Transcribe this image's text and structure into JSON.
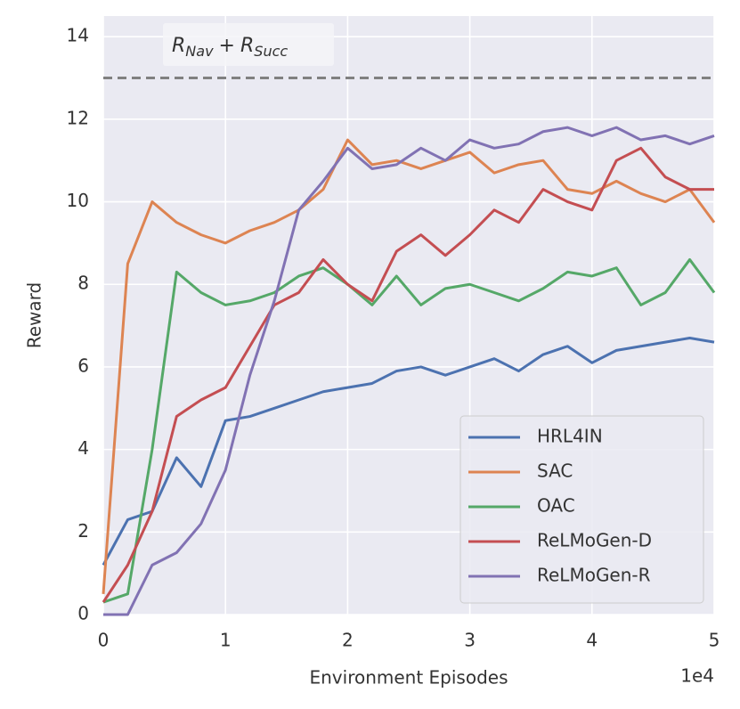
{
  "chart_data": {
    "type": "line",
    "xlabel": "Environment Episodes",
    "ylabel": "Reward",
    "x_offset_label": "1e4",
    "xlim": [
      0,
      5
    ],
    "ylim": [
      0,
      14.5
    ],
    "xticks": [
      0,
      1,
      2,
      3,
      4,
      5
    ],
    "yticks": [
      0,
      2,
      4,
      6,
      8,
      10,
      12,
      14
    ],
    "grid": true,
    "legend": "lower right",
    "reference_line": {
      "value": 13,
      "color": "#808080",
      "label_parts": [
        "R",
        "Nav",
        "+",
        "R",
        "Succ"
      ]
    },
    "x": [
      0,
      0.2,
      0.4,
      0.6,
      0.8,
      1.0,
      1.2,
      1.4,
      1.6,
      1.8,
      2.0,
      2.2,
      2.4,
      2.6,
      2.8,
      3.0,
      3.2,
      3.4,
      3.6,
      3.8,
      4.0,
      4.2,
      4.4,
      4.6,
      4.8,
      5.0
    ],
    "series": [
      {
        "name": "HRL4IN",
        "color": "#4c72b0",
        "values": [
          1.2,
          2.3,
          2.5,
          3.8,
          3.1,
          4.7,
          4.8,
          5.0,
          5.2,
          5.4,
          5.5,
          5.6,
          5.9,
          6.0,
          5.8,
          6.0,
          6.2,
          5.9,
          6.3,
          6.5,
          6.1,
          6.4,
          6.5,
          6.6,
          6.7,
          6.6
        ]
      },
      {
        "name": "SAC",
        "color": "#dd8452",
        "values": [
          0.5,
          8.5,
          10.0,
          9.5,
          9.2,
          9.0,
          9.3,
          9.5,
          9.8,
          10.3,
          11.5,
          10.9,
          11.0,
          10.8,
          11.0,
          11.2,
          10.7,
          10.9,
          11.0,
          10.3,
          10.2,
          10.5,
          10.2,
          10.0,
          10.3,
          9.5
        ]
      },
      {
        "name": "OAC",
        "color": "#55a868",
        "values": [
          0.3,
          0.5,
          4.0,
          8.3,
          7.8,
          7.5,
          7.6,
          7.8,
          8.2,
          8.4,
          8.0,
          7.5,
          8.2,
          7.5,
          7.9,
          8.0,
          7.8,
          7.6,
          7.9,
          8.3,
          8.2,
          8.4,
          7.5,
          7.8,
          8.6,
          7.8
        ]
      },
      {
        "name": "ReLMoGen-D",
        "color": "#c44e52",
        "values": [
          0.3,
          1.2,
          2.5,
          4.8,
          5.2,
          5.5,
          6.5,
          7.5,
          7.8,
          8.6,
          8.0,
          7.6,
          8.8,
          9.2,
          8.7,
          9.2,
          9.8,
          9.5,
          10.3,
          10.0,
          9.8,
          11.0,
          11.3,
          10.6,
          10.3,
          10.3
        ]
      },
      {
        "name": "ReLMoGen-R",
        "color": "#8172b3",
        "values": [
          0.0,
          0.0,
          1.2,
          1.5,
          2.2,
          3.5,
          5.8,
          7.6,
          9.8,
          10.5,
          11.3,
          10.8,
          10.9,
          11.3,
          11.0,
          11.5,
          11.3,
          11.4,
          11.7,
          11.8,
          11.6,
          11.8,
          11.5,
          11.6,
          11.4,
          11.6
        ]
      }
    ]
  }
}
